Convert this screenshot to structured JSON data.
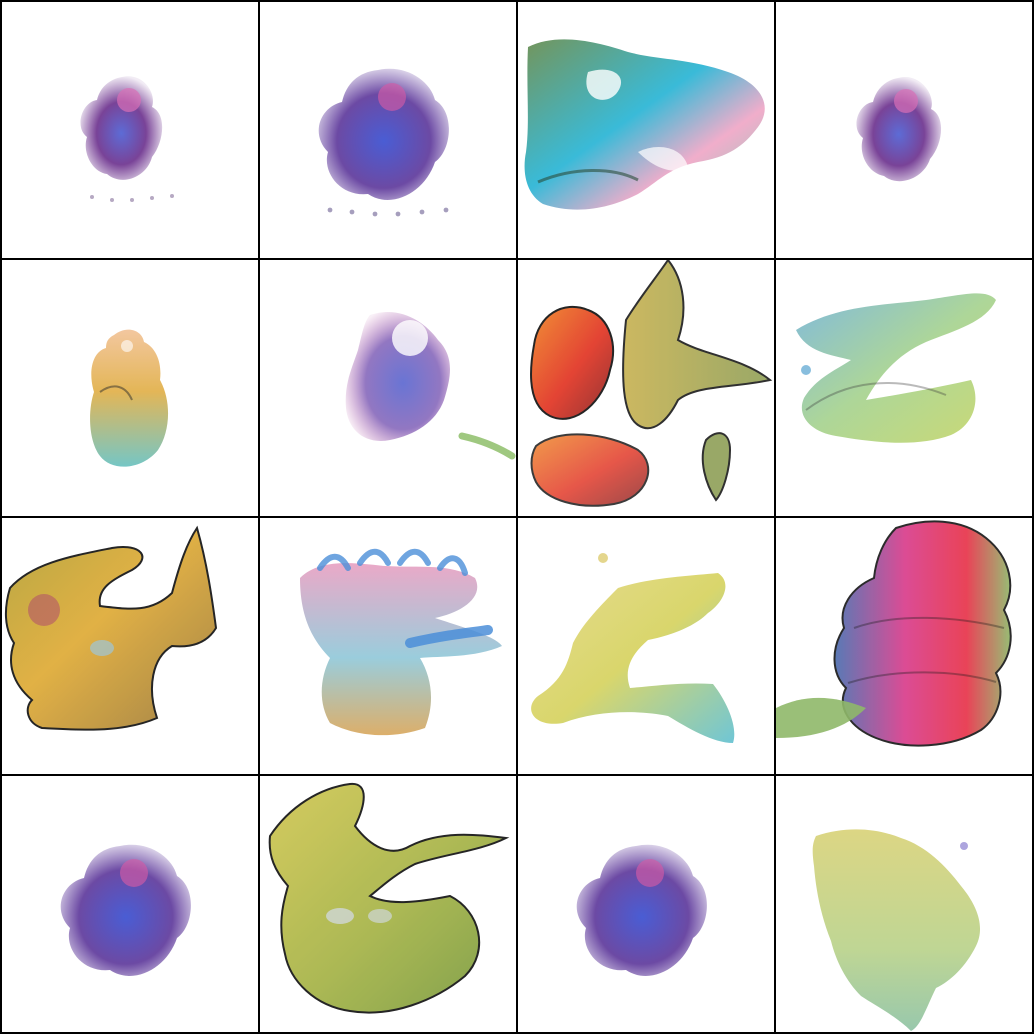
{
  "grid": {
    "rows": 4,
    "cols": 4,
    "tiles": [
      {
        "id": "r1c1",
        "motif": "small-purple-blob",
        "palette": [
          "#6a2e8c",
          "#4b5bd1",
          "#d96fb6"
        ]
      },
      {
        "id": "r1c2",
        "motif": "medium-purple-blob",
        "palette": [
          "#5f3a9c",
          "#3a4fd0",
          "#d35aa6"
        ]
      },
      {
        "id": "r1c3",
        "motif": "cyan-pink-landscape",
        "palette": [
          "#2fb7d6",
          "#f0a9c8",
          "#7ecbb8",
          "#6c8f52"
        ]
      },
      {
        "id": "r1c4",
        "motif": "small-purple-blob",
        "palette": [
          "#6a2e8c",
          "#4b5bd1",
          "#d96fb6"
        ]
      },
      {
        "id": "r2c1",
        "motif": "tall-yellow-figure",
        "palette": [
          "#e2b24e",
          "#f2c49a",
          "#6ec3c2",
          "#6a56b0"
        ]
      },
      {
        "id": "r2c2",
        "motif": "purple-splotch-right",
        "palette": [
          "#7f5fb7",
          "#4f5ccc",
          "#c06bb0"
        ]
      },
      {
        "id": "r2c3",
        "motif": "red-orange-green-shapes",
        "palette": [
          "#e23a2a",
          "#f08a2c",
          "#8f9f57",
          "#c7b150"
        ]
      },
      {
        "id": "r2c4",
        "motif": "blue-green-strands",
        "palette": [
          "#6aaed6",
          "#9fcf86",
          "#c2d35c"
        ]
      },
      {
        "id": "r3c1",
        "motif": "olive-yellow-sprawl",
        "palette": [
          "#b4a33a",
          "#e0ad3c",
          "#9d7c3f",
          "#b04c6c"
        ]
      },
      {
        "id": "r3c2",
        "motif": "pink-blue-cluster",
        "palette": [
          "#e89fc1",
          "#4b8ed8",
          "#d8a65a",
          "#8fc7d8"
        ]
      },
      {
        "id": "r3c3",
        "motif": "yellow-green-plateau",
        "palette": [
          "#d7d464",
          "#8ec8a7",
          "#e5d98a",
          "#68c3d3"
        ]
      },
      {
        "id": "r3c4",
        "motif": "red-magenta-stack",
        "palette": [
          "#e8344a",
          "#d93d8c",
          "#4b6fb0",
          "#8fb869"
        ]
      },
      {
        "id": "r4c1",
        "motif": "medium-purple-blob",
        "palette": [
          "#5f3a9c",
          "#3a4fd0",
          "#d35aa6"
        ]
      },
      {
        "id": "r4c2",
        "motif": "olive-serpent",
        "palette": [
          "#a7b54b",
          "#d3c857",
          "#7a9b43",
          "#c0a55c"
        ]
      },
      {
        "id": "r4c3",
        "motif": "medium-purple-blob",
        "palette": [
          "#5f3a9c",
          "#3a4fd0",
          "#d35aa6"
        ]
      },
      {
        "id": "r4c4",
        "motif": "pale-yellow-blob",
        "palette": [
          "#d9d279",
          "#b9d28b",
          "#8fc3a5"
        ]
      }
    ]
  }
}
